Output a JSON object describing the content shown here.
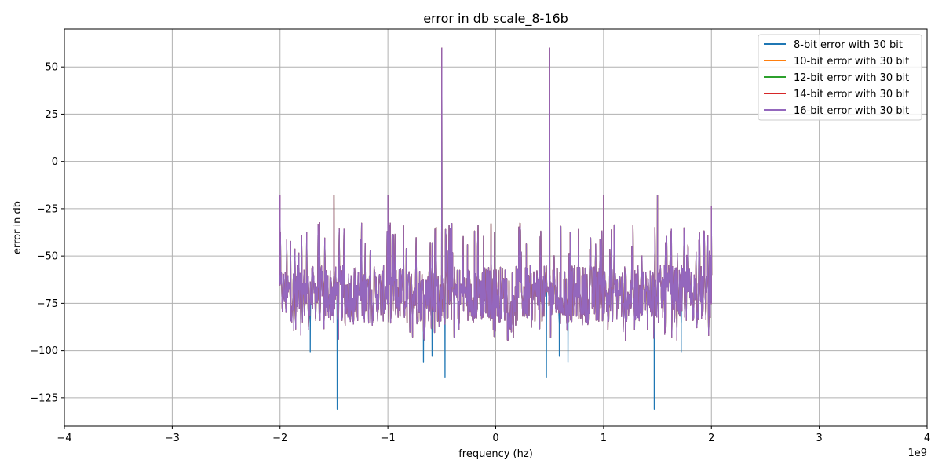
{
  "chart_data": {
    "type": "line",
    "title": "error in db scale_8-16b",
    "xlabel": "frequency (hz)",
    "ylabel": "error in db",
    "x_offset_label": "1e9",
    "xlim": [
      -4,
      4
    ],
    "ylim": [
      -140,
      70
    ],
    "x_ticks": [
      -4,
      -3,
      -2,
      -1,
      0,
      1,
      2,
      3,
      4
    ],
    "x_tick_labels": [
      "−4",
      "−3",
      "−2",
      "−1",
      "0",
      "1",
      "2",
      "3",
      "4"
    ],
    "y_ticks": [
      50,
      25,
      0,
      -25,
      -50,
      -75,
      -100,
      -125
    ],
    "y_tick_labels": [
      "50",
      "25",
      "0",
      "−25",
      "−50",
      "−75",
      "−100",
      "−125"
    ],
    "grid": true,
    "legend_position": "top-right",
    "x_range": [
      -2,
      2
    ],
    "baseline_range": [
      -85,
      -55
    ],
    "series": [
      {
        "name": "8-bit error with 30 bit",
        "color": "#1f77b4"
      },
      {
        "name": "10-bit error with 30 bit",
        "color": "#ff7f0e"
      },
      {
        "name": "12-bit error with 30 bit",
        "color": "#2ca02c"
      },
      {
        "name": "14-bit error with 30 bit",
        "color": "#d62728"
      },
      {
        "name": "16-bit error with 30 bit",
        "color": "#9467bd"
      }
    ],
    "peaks_up": [
      {
        "x": -2.0,
        "y": -18
      },
      {
        "x": -1.5,
        "y": -18
      },
      {
        "x": -1.0,
        "y": -18
      },
      {
        "x": -0.5,
        "y": 60
      },
      {
        "x": 0.5,
        "y": 60
      },
      {
        "x": 1.0,
        "y": -18
      },
      {
        "x": 1.5,
        "y": -18
      },
      {
        "x": 2.0,
        "y": -24
      }
    ],
    "dips_8bit": [
      {
        "x": -1.47,
        "y": -131
      },
      {
        "x": -0.47,
        "y": -114
      },
      {
        "x": 0.47,
        "y": -114
      },
      {
        "x": 1.47,
        "y": -131
      },
      {
        "x": -0.67,
        "y": -106
      },
      {
        "x": 0.67,
        "y": -106
      },
      {
        "x": -0.59,
        "y": -103
      },
      {
        "x": 0.59,
        "y": -103
      },
      {
        "x": -1.72,
        "y": -101
      },
      {
        "x": 1.72,
        "y": -101
      }
    ]
  }
}
